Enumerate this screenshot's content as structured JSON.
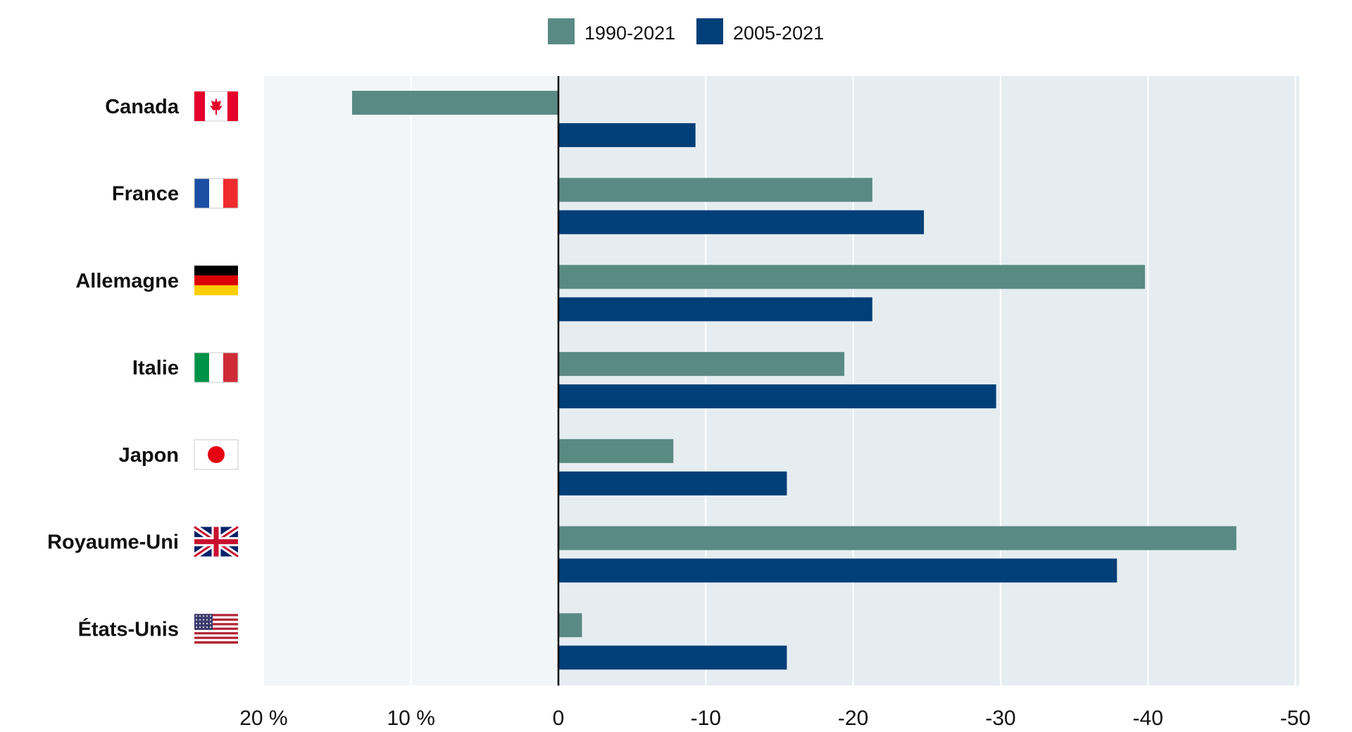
{
  "chart_data": {
    "type": "bar",
    "orientation": "horizontal",
    "axis_reversed": true,
    "categories": [
      "Canada",
      "France",
      "Allemagne",
      "Italie",
      "Japon",
      "Royaume-Uni",
      "États-Unis"
    ],
    "series": [
      {
        "name": "1990-2021",
        "color": "#5a8a84",
        "values": [
          14,
          -21.3,
          -39.8,
          -19.4,
          -7.8,
          -46,
          -1.6
        ]
      },
      {
        "name": "2005-2021",
        "color": "#003f78",
        "values": [
          -9.3,
          -24.8,
          -21.3,
          -29.7,
          -15.5,
          -37.9,
          -15.5
        ]
      }
    ],
    "xlim": [
      20,
      -50
    ],
    "xticks": [
      20,
      10,
      0,
      -10,
      -20,
      -30,
      -40,
      -50
    ],
    "xtick_labels": [
      "20 %",
      "10 %",
      "0",
      "-10",
      "-20",
      "-30",
      "-40",
      "-50"
    ],
    "legend_position": "top-center",
    "grid": true,
    "colors": {
      "positive_region": "#f2f6f8",
      "negative_region": "#e6edf1",
      "grid": "#ffffff",
      "zero_line": "#000000"
    },
    "flags": [
      "canada-flag-icon",
      "france-flag-icon",
      "germany-flag-icon",
      "italy-flag-icon",
      "japan-flag-icon",
      "uk-flag-icon",
      "usa-flag-icon"
    ]
  }
}
